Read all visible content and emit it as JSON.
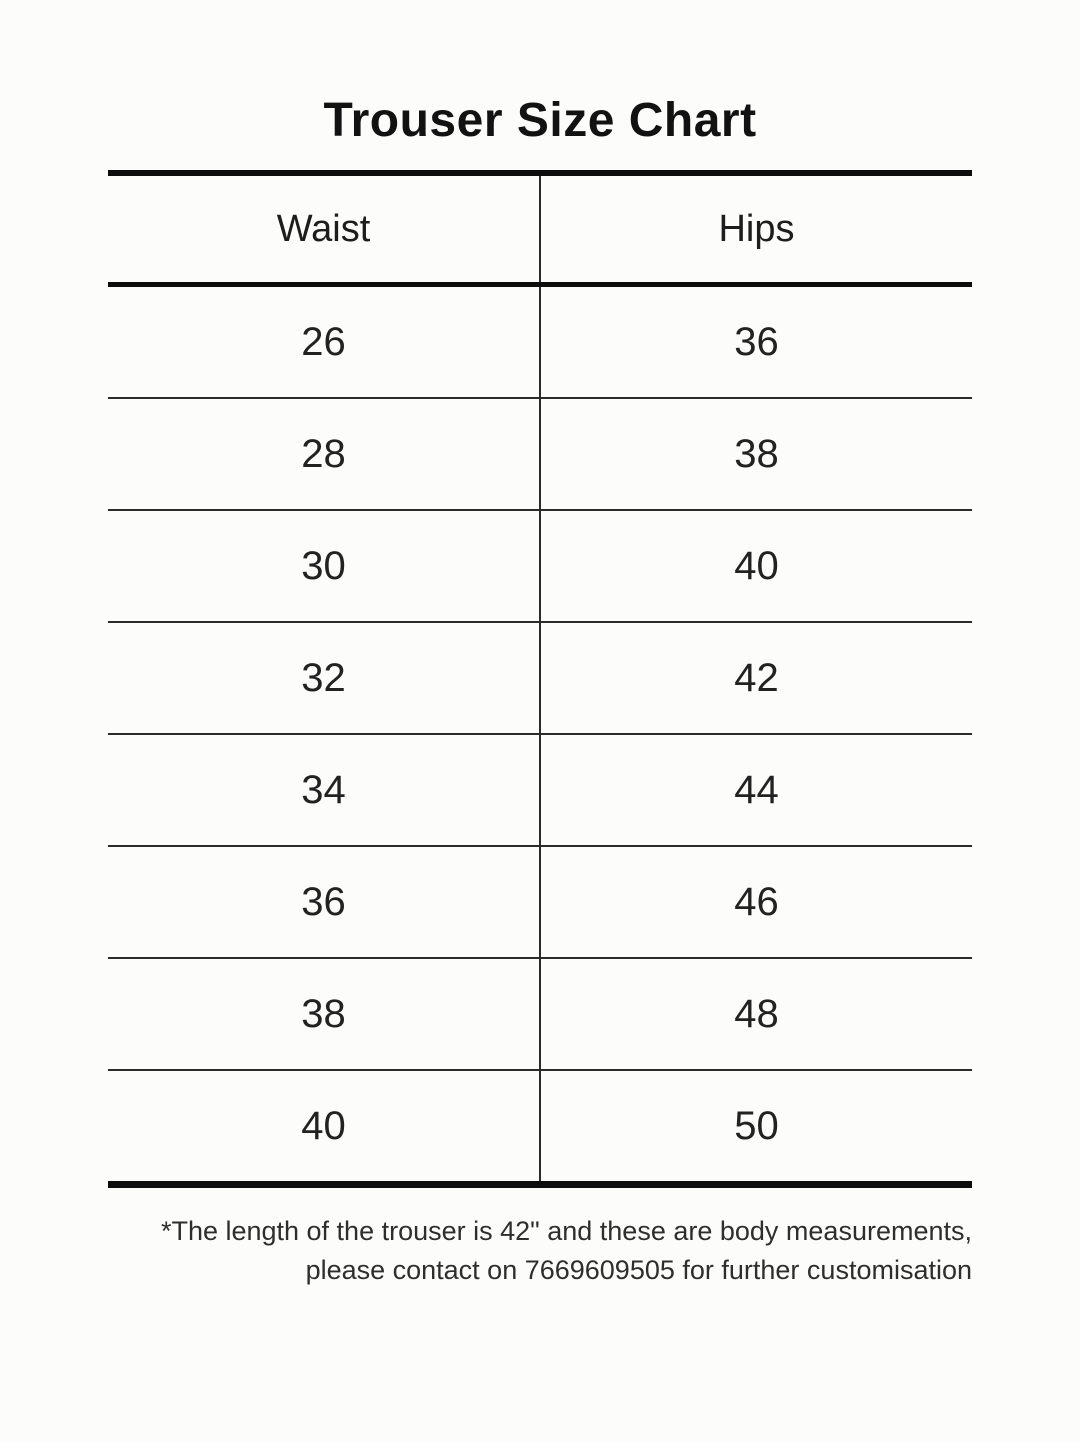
{
  "page": {
    "background": "#fcfcfb",
    "text_color": "#1c1c1c",
    "line_color": "#0d0d0d"
  },
  "title": "Trouser Size Chart",
  "table": {
    "headers": [
      "Waist",
      "Hips"
    ],
    "rows": [
      [
        "26",
        "36"
      ],
      [
        "28",
        "38"
      ],
      [
        "30",
        "40"
      ],
      [
        "32",
        "42"
      ],
      [
        "34",
        "44"
      ],
      [
        "36",
        "46"
      ],
      [
        "38",
        "48"
      ],
      [
        "40",
        "50"
      ]
    ]
  },
  "footnote": {
    "line1": "*The length of the trouser is 42\" and these are body measurements,",
    "line2": "please contact on 7669609505 for further customisation"
  }
}
